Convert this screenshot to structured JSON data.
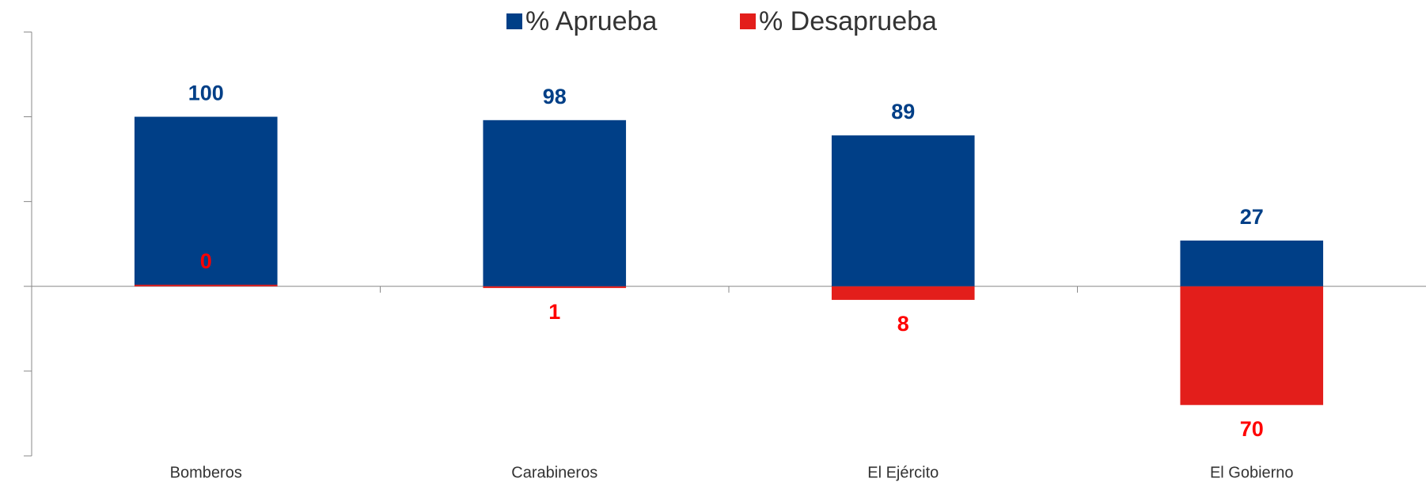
{
  "chart_data": {
    "type": "bar",
    "categories": [
      "Bomberos",
      "Carabineros",
      "El Ejército",
      "El Gobierno"
    ],
    "series": [
      {
        "name": "% Aprueba",
        "color": "#003f87",
        "values": [
          100,
          98,
          89,
          27
        ],
        "value_labels": [
          "100",
          "98",
          "89",
          "27"
        ]
      },
      {
        "name": "% Desaprueba",
        "color": "#e31e1b",
        "values": [
          0,
          -1,
          -8,
          -70
        ],
        "value_labels": [
          "0",
          "1",
          "8",
          "70"
        ]
      }
    ],
    "ylim": [
      -100,
      150
    ],
    "yticks": [
      -100,
      -50,
      0,
      50,
      100,
      150
    ]
  }
}
